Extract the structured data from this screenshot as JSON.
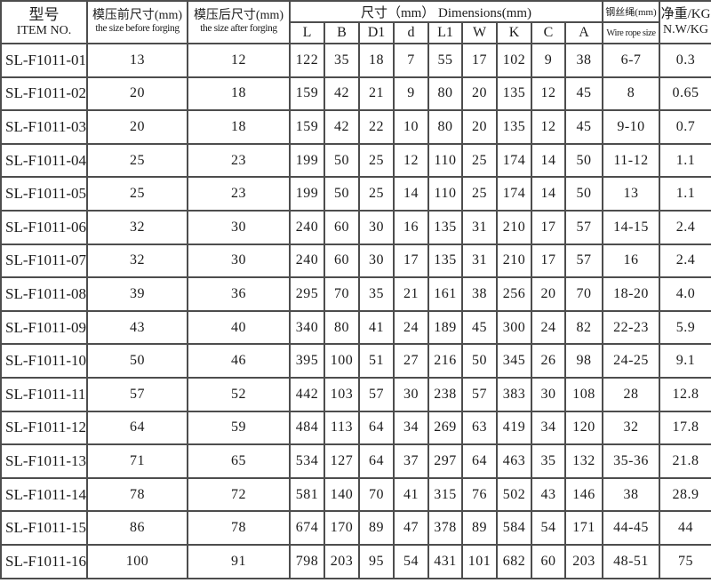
{
  "table": {
    "header": {
      "item_no_zh": "型号",
      "item_no_en": "ITEM NO.",
      "before_zh": "模压前尺寸(mm)",
      "before_en": "the size before forging",
      "after_zh": "模压后尺寸(mm)",
      "after_en": "the size after forging",
      "dimensions": "尺寸（mm）  Dimensions(mm)",
      "dimension_cols": [
        "L",
        "B",
        "D1",
        "d",
        "L1",
        "W",
        "K",
        "C",
        "A"
      ],
      "wire_zh": "钢丝绳(mm)",
      "wire_en": "Wire rope size",
      "weight_zh": "净重/KG",
      "weight_en": "N.W/KG"
    },
    "rows": [
      {
        "item": "SL-F1011-01",
        "before": "13",
        "after": "12",
        "dims": [
          "122",
          "35",
          "18",
          "7",
          "55",
          "17",
          "102",
          "9",
          "38"
        ],
        "wire": "6-7",
        "weight": "0.3"
      },
      {
        "item": "SL-F1011-02",
        "before": "20",
        "after": "18",
        "dims": [
          "159",
          "42",
          "21",
          "9",
          "80",
          "20",
          "135",
          "12",
          "45"
        ],
        "wire": "8",
        "weight": "0.65"
      },
      {
        "item": "SL-F1011-03",
        "before": "20",
        "after": "18",
        "dims": [
          "159",
          "42",
          "22",
          "10",
          "80",
          "20",
          "135",
          "12",
          "45"
        ],
        "wire": "9-10",
        "weight": "0.7"
      },
      {
        "item": "SL-F1011-04",
        "before": "25",
        "after": "23",
        "dims": [
          "199",
          "50",
          "25",
          "12",
          "110",
          "25",
          "174",
          "14",
          "50"
        ],
        "wire": "11-12",
        "weight": "1.1"
      },
      {
        "item": "SL-F1011-05",
        "before": "25",
        "after": "23",
        "dims": [
          "199",
          "50",
          "25",
          "14",
          "110",
          "25",
          "174",
          "14",
          "50"
        ],
        "wire": "13",
        "weight": "1.1"
      },
      {
        "item": "SL-F1011-06",
        "before": "32",
        "after": "30",
        "dims": [
          "240",
          "60",
          "30",
          "16",
          "135",
          "31",
          "210",
          "17",
          "57"
        ],
        "wire": "14-15",
        "weight": "2.4"
      },
      {
        "item": "SL-F1011-07",
        "before": "32",
        "after": "30",
        "dims": [
          "240",
          "60",
          "30",
          "17",
          "135",
          "31",
          "210",
          "17",
          "57"
        ],
        "wire": "16",
        "weight": "2.4"
      },
      {
        "item": "SL-F1011-08",
        "before": "39",
        "after": "36",
        "dims": [
          "295",
          "70",
          "35",
          "21",
          "161",
          "38",
          "256",
          "20",
          "70"
        ],
        "wire": "18-20",
        "weight": "4.0"
      },
      {
        "item": "SL-F1011-09",
        "before": "43",
        "after": "40",
        "dims": [
          "340",
          "80",
          "41",
          "24",
          "189",
          "45",
          "300",
          "24",
          "82"
        ],
        "wire": "22-23",
        "weight": "5.9"
      },
      {
        "item": "SL-F1011-10",
        "before": "50",
        "after": "46",
        "dims": [
          "395",
          "100",
          "51",
          "27",
          "216",
          "50",
          "345",
          "26",
          "98"
        ],
        "wire": "24-25",
        "weight": "9.1"
      },
      {
        "item": "SL-F1011-11",
        "before": "57",
        "after": "52",
        "dims": [
          "442",
          "103",
          "57",
          "30",
          "238",
          "57",
          "383",
          "30",
          "108"
        ],
        "wire": "28",
        "weight": "12.8"
      },
      {
        "item": "SL-F1011-12",
        "before": "64",
        "after": "59",
        "dims": [
          "484",
          "113",
          "64",
          "34",
          "269",
          "63",
          "419",
          "34",
          "120"
        ],
        "wire": "32",
        "weight": "17.8"
      },
      {
        "item": "SL-F1011-13",
        "before": "71",
        "after": "65",
        "dims": [
          "534",
          "127",
          "64",
          "37",
          "297",
          "64",
          "463",
          "35",
          "132"
        ],
        "wire": "35-36",
        "weight": "21.8"
      },
      {
        "item": "SL-F1011-14",
        "before": "78",
        "after": "72",
        "dims": [
          "581",
          "140",
          "70",
          "41",
          "315",
          "76",
          "502",
          "43",
          "146"
        ],
        "wire": "38",
        "weight": "28.9"
      },
      {
        "item": "SL-F1011-15",
        "before": "86",
        "after": "78",
        "dims": [
          "674",
          "170",
          "89",
          "47",
          "378",
          "89",
          "584",
          "54",
          "171"
        ],
        "wire": "44-45",
        "weight": "44"
      },
      {
        "item": "SL-F1011-16",
        "before": "100",
        "after": "91",
        "dims": [
          "798",
          "203",
          "95",
          "54",
          "431",
          "101",
          "682",
          "60",
          "203"
        ],
        "wire": "48-51",
        "weight": "75"
      }
    ]
  },
  "colors": {
    "grid_border": "#4d4d4d",
    "background": "#ffffff",
    "text": "#1c1c1c"
  }
}
